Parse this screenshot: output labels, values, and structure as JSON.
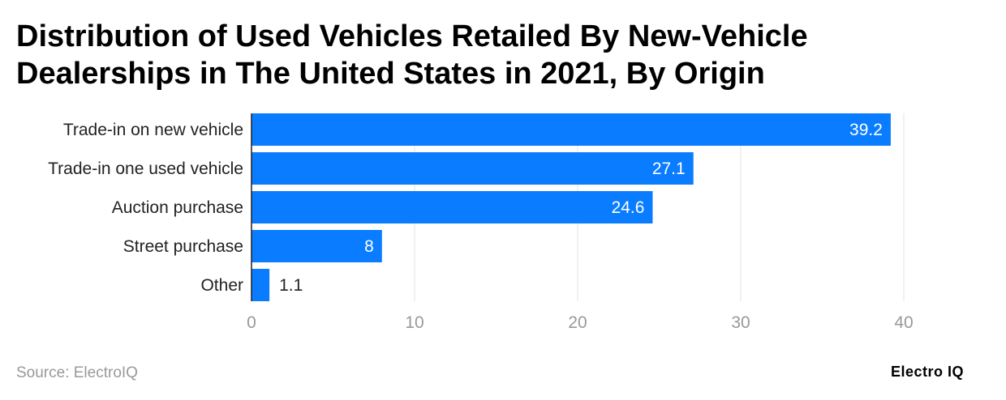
{
  "chart_data": {
    "type": "bar",
    "orientation": "horizontal",
    "title": "Distribution of Used Vehicles Retailed By New-Vehicle Dealerships in The United States in 2021, By Origin",
    "categories": [
      "Trade-in on new vehicle",
      "Trade-in one used vehicle",
      "Auction purchase",
      "Street purchase",
      "Other"
    ],
    "values": [
      39.2,
      27.1,
      24.6,
      8,
      1.1
    ],
    "value_labels": [
      "39.2",
      "27.1",
      "24.6",
      "8",
      "1.1"
    ],
    "xlim": [
      0,
      40
    ],
    "ticks": [
      0,
      10,
      20,
      30,
      40
    ],
    "grid": true,
    "bar_color": "#0a7cff"
  },
  "source": "Source: ElectroIQ",
  "logo": "Electro IQ"
}
